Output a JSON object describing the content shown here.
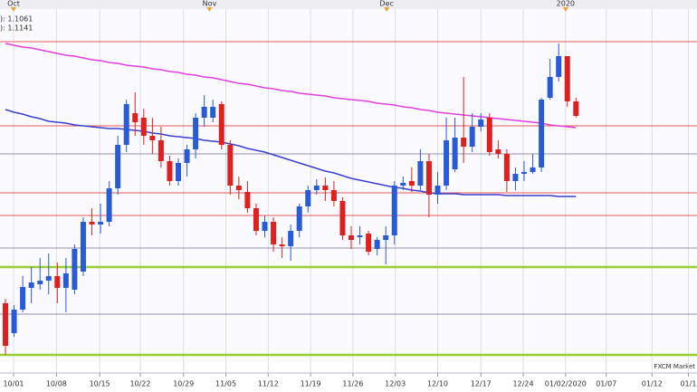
{
  "chart_data": {
    "type": "candlestick",
    "categories": [
      null,
      null,
      null,
      null,
      null,
      null,
      null,
      null,
      null,
      null,
      null,
      null,
      null,
      null,
      null,
      null,
      null,
      null,
      null,
      null,
      null,
      null,
      null,
      null,
      null,
      null,
      null,
      null,
      null,
      null,
      null,
      null,
      null,
      null,
      null,
      null,
      null,
      null,
      null,
      null,
      null,
      null,
      null,
      null,
      null,
      null,
      null,
      null,
      null,
      null,
      null,
      null,
      null,
      null,
      null,
      null,
      null,
      null,
      null,
      null,
      null,
      null,
      null,
      null,
      null,
      null,
      null
    ],
    "open": [
      1.0943,
      1.091,
      1.0936,
      1.096,
      1.0964,
      1.0968,
      1.0973,
      1.096,
      1.0958,
      1.0978,
      1.1033,
      1.103,
      1.1033,
      1.107,
      1.1118,
      1.1153,
      1.1148,
      1.1128,
      1.1123,
      1.11,
      1.1078,
      1.1098,
      1.1113,
      1.1148,
      1.1148,
      1.1163,
      1.1118,
      1.1073,
      1.1066,
      1.1048,
      1.1023,
      1.1033,
      1.1008,
      1.1006,
      1.1023,
      1.105,
      1.1068,
      1.1073,
      1.1068,
      1.1056,
      1.1018,
      1.1016,
      1.102,
      1.1003,
      1.1013,
      1.1018,
      1.1073,
      1.1078,
      1.1073,
      1.11,
      1.1063,
      1.1073,
      1.1091,
      1.1126,
      1.1116,
      1.1138,
      1.1148,
      1.1113,
      1.1108,
      1.1078,
      1.1086,
      1.1088,
      1.1093,
      1.117,
      1.1193,
      1.1216,
      1.1166
    ],
    "high": [
      1.0948,
      1.0941,
      1.0973,
      1.0983,
      1.0993,
      1.0998,
      1.0988,
      1.0993,
      1.1008,
      1.1038,
      1.1048,
      1.1053,
      1.1078,
      1.1128,
      1.1168,
      1.1176,
      1.1158,
      1.1148,
      1.1138,
      1.1106,
      1.1103,
      1.1118,
      1.1153,
      1.1173,
      1.1168,
      1.1166,
      1.1123,
      1.1083,
      1.1078,
      1.1053,
      1.104,
      1.1038,
      1.1016,
      1.103,
      1.1053,
      1.1073,
      1.108,
      1.1082,
      1.1078,
      1.106,
      1.1028,
      1.1028,
      1.1023,
      1.1016,
      1.1028,
      1.1078,
      1.1083,
      1.1093,
      1.1113,
      1.1108,
      1.1088,
      1.1148,
      1.1148,
      1.1193,
      1.1153,
      1.1153,
      1.1153,
      1.1123,
      1.1113,
      1.1093,
      1.11,
      1.1108,
      1.117,
      1.1213,
      1.123,
      1.1216,
      1.117
    ],
    "low": [
      1.0886,
      1.0906,
      1.0933,
      1.0943,
      1.0958,
      1.0953,
      1.0943,
      1.0933,
      1.0953,
      1.0973,
      1.1018,
      1.102,
      1.1028,
      1.1063,
      1.111,
      1.1128,
      1.1118,
      1.1108,
      1.1093,
      1.1073,
      1.1073,
      1.1083,
      1.1103,
      1.1138,
      1.1143,
      1.1113,
      1.1063,
      1.1058,
      1.1043,
      1.1018,
      1.1016,
      1.1,
      1.0993,
      1.099,
      1.1016,
      1.1043,
      1.1063,
      1.1056,
      1.105,
      1.1013,
      1.1003,
      1.1008,
      1.0996,
      1.0996,
      1.0986,
      1.1008,
      1.1068,
      1.1066,
      1.1068,
      1.1038,
      1.1053,
      1.1068,
      1.1088,
      1.1098,
      1.111,
      1.1133,
      1.1106,
      1.1103,
      1.1066,
      1.1068,
      1.1078,
      1.1086,
      1.1088,
      1.1168,
      1.1188,
      1.116,
      1.1148
    ],
    "close": [
      1.0896,
      1.0936,
      1.0961,
      1.0966,
      1.0968,
      1.0973,
      1.096,
      1.0976,
      1.1003,
      1.1033,
      1.103,
      1.1033,
      1.107,
      1.1118,
      1.1163,
      1.1143,
      1.1128,
      1.1123,
      1.11,
      1.1078,
      1.1098,
      1.1113,
      1.1148,
      1.116,
      1.116,
      1.1118,
      1.1073,
      1.1068,
      1.1048,
      1.1023,
      1.1033,
      1.1008,
      1.1006,
      1.1023,
      1.105,
      1.1068,
      1.1073,
      1.1068,
      1.1056,
      1.1018,
      1.1013,
      1.1018,
      1.1,
      1.1013,
      1.1018,
      1.1073,
      1.1076,
      1.1073,
      1.11,
      1.1063,
      1.1073,
      1.1123,
      1.1126,
      1.1116,
      1.1138,
      1.1146,
      1.111,
      1.1108,
      1.1078,
      1.1086,
      1.1088,
      1.1093,
      1.1168,
      1.1193,
      1.1216,
      1.1166,
      1.115
    ],
    "up_color": "#2a5bd7",
    "down_color": "#e0201e",
    "series": [
      {
        "name": "): 1.1061",
        "color": "#3a3fd0",
        "values": [
          1.1157,
          1.1154,
          1.1152,
          1.1149,
          1.1147,
          1.1144,
          1.1143,
          1.1142,
          1.114,
          1.1139,
          1.1138,
          1.1137,
          1.1136,
          1.1136,
          1.1135,
          1.1134,
          1.1133,
          1.1131,
          1.113,
          1.1128,
          1.1127,
          1.1126,
          1.1125,
          1.1123,
          1.1122,
          1.1121,
          1.1119,
          1.1117,
          1.1114,
          1.1112,
          1.111,
          1.1107,
          1.1104,
          1.1101,
          1.1098,
          1.1095,
          1.1092,
          1.1089,
          1.1087,
          1.1084,
          1.1081,
          1.1079,
          1.1077,
          1.1075,
          1.1073,
          1.1071,
          1.107,
          1.1068,
          1.1067,
          1.1065,
          1.1064,
          1.1064,
          1.1064,
          1.1063,
          1.1063,
          1.1063,
          1.1063,
          1.1063,
          1.1062,
          1.1062,
          1.1062,
          1.1062,
          1.1062,
          1.1062,
          1.1061,
          1.1061,
          1.1061
        ]
      },
      {
        "name": "): 1.1141",
        "color": "#e040e0",
        "values": [
          1.123,
          1.1228,
          1.1226,
          1.1225,
          1.1223,
          1.1221,
          1.1219,
          1.1217,
          1.1216,
          1.1214,
          1.1212,
          1.1211,
          1.1209,
          1.1208,
          1.1206,
          1.1205,
          1.1204,
          1.1202,
          1.1201,
          1.1199,
          1.1198,
          1.1196,
          1.1195,
          1.1193,
          1.1192,
          1.119,
          1.1188,
          1.1186,
          1.1185,
          1.1183,
          1.1181,
          1.118,
          1.1178,
          1.1177,
          1.1175,
          1.1174,
          1.1173,
          1.1172,
          1.117,
          1.1169,
          1.1168,
          1.1167,
          1.1166,
          1.1164,
          1.1163,
          1.1162,
          1.116,
          1.1159,
          1.1157,
          1.1156,
          1.1154,
          1.1153,
          1.1152,
          1.1151,
          1.115,
          1.1149,
          1.1148,
          1.1147,
          1.1146,
          1.1145,
          1.1144,
          1.1143,
          1.1142,
          1.114,
          1.1139,
          1.1138,
          1.1137
        ]
      }
    ],
    "hlines": [
      {
        "value": 1.1232,
        "color": "#e05a5a"
      },
      {
        "value": 1.1139,
        "color": "#e05a5a"
      },
      {
        "value": 1.1108,
        "color": "#9090b0"
      },
      {
        "value": 1.1065,
        "color": "#e05a5a"
      },
      {
        "value": 1.104,
        "color": "#e05a5a"
      },
      {
        "value": 1.1004,
        "color": "#9090b0"
      },
      {
        "value": 1.0983,
        "color": "#9acd32"
      },
      {
        "value": 1.0931,
        "color": "#9090b0"
      },
      {
        "value": 1.0886,
        "color": "#9acd32"
      }
    ],
    "ylim": [
      1.0878,
      1.1268
    ],
    "xlim": [
      -0.63,
      80
    ],
    "xticks": [
      {
        "value": 0.94,
        "label": "10/01"
      },
      {
        "value": 5.9,
        "label": "10/08"
      },
      {
        "value": 10.9,
        "label": "10/15"
      },
      {
        "value": 15.6,
        "label": "10/22"
      },
      {
        "value": 20.6,
        "label": "10/29"
      },
      {
        "value": 25.5,
        "label": "11/05"
      },
      {
        "value": 30.4,
        "label": "11/12"
      },
      {
        "value": 35.3,
        "label": "11/19"
      },
      {
        "value": 40.2,
        "label": "11/26"
      },
      {
        "value": 45.1,
        "label": "12/03"
      },
      {
        "value": 50,
        "label": "12/10"
      },
      {
        "value": 55,
        "label": "12/17"
      },
      {
        "value": 59.9,
        "label": "12/24"
      },
      {
        "value": 64.8,
        "label": "01/02/2020"
      },
      {
        "value": 69.5,
        "label": "01/07"
      },
      {
        "value": 74.8,
        "label": "01/12"
      },
      {
        "value": 79,
        "label": "01/1"
      }
    ],
    "x2ticks": [
      {
        "value": 0.94,
        "label": "Oct"
      },
      {
        "value": 23.6,
        "label": "Nov"
      },
      {
        "value": 44.1,
        "label": "Dec"
      },
      {
        "value": 64.8,
        "label": "2020"
      }
    ],
    "annotation": "FXCM Market"
  }
}
